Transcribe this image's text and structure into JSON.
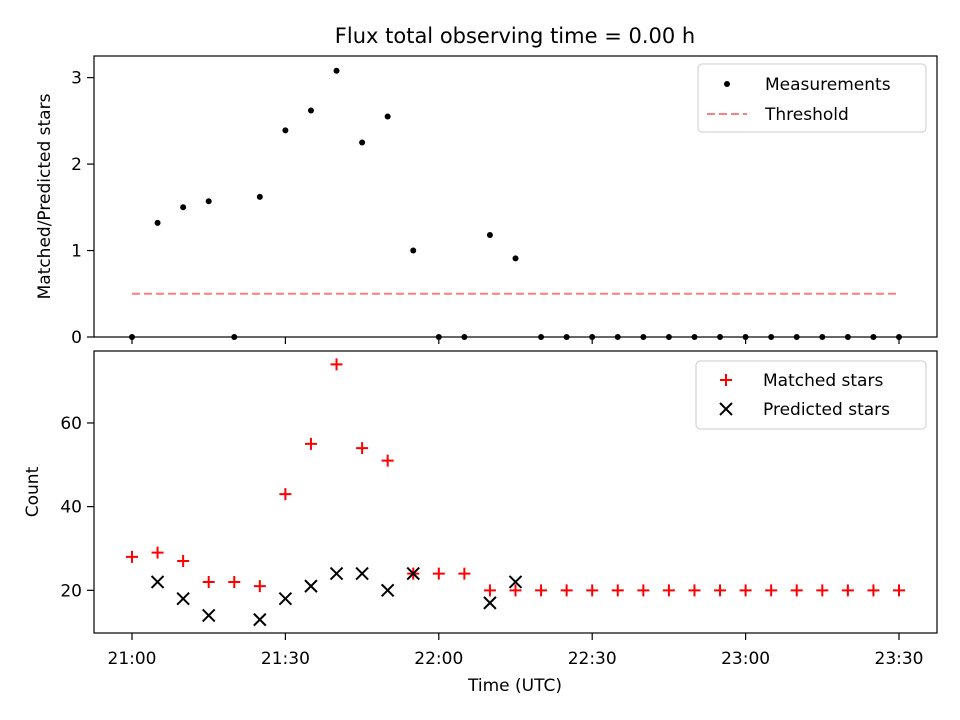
{
  "title": "Flux total observing time = 0.00 h",
  "colors": {
    "measurement": "#000000",
    "threshold": "#ff7f7f",
    "matched": "#ff0000",
    "predicted": "#000000"
  },
  "chart_data": [
    {
      "type": "scatter",
      "title": "Flux total observing time = 0.00 h",
      "xlabel": "",
      "ylabel": "Matched/Predicted stars",
      "ylim": [
        0,
        3.25
      ],
      "yticks": [
        0,
        1,
        2,
        3
      ],
      "x": [
        "21:00",
        "21:05",
        "21:10",
        "21:15",
        "21:20",
        "21:25",
        "21:30",
        "21:35",
        "21:40",
        "21:45",
        "21:50",
        "21:55",
        "22:00",
        "22:05",
        "22:10",
        "22:15",
        "22:20",
        "22:25",
        "22:30",
        "22:35",
        "22:40",
        "22:45",
        "22:50",
        "22:55",
        "23:00",
        "23:05",
        "23:10",
        "23:15",
        "23:20",
        "23:25",
        "23:30"
      ],
      "series": [
        {
          "name": "Measurements",
          "marker": "dot",
          "values": [
            0,
            1.32,
            1.5,
            1.57,
            0,
            1.62,
            2.39,
            2.62,
            3.08,
            2.25,
            2.55,
            1.0,
            0,
            0,
            1.18,
            0.91,
            0,
            0,
            0,
            0,
            0,
            0,
            0,
            0,
            0,
            0,
            0,
            0,
            0,
            0,
            0
          ]
        },
        {
          "name": "Threshold",
          "marker": "dashed-line",
          "values": [
            0.5,
            0.5
          ]
        }
      ],
      "legend": "top-right",
      "grid": false
    },
    {
      "type": "scatter",
      "xlabel": "Time (UTC)",
      "ylabel": "Count",
      "ylim": [
        9.8,
        77.2
      ],
      "yticks": [
        20,
        40,
        60
      ],
      "xticks": [
        "21:00",
        "21:30",
        "22:00",
        "22:30",
        "23:00",
        "23:30"
      ],
      "x": [
        "21:00",
        "21:05",
        "21:10",
        "21:15",
        "21:20",
        "21:25",
        "21:30",
        "21:35",
        "21:40",
        "21:45",
        "21:50",
        "21:55",
        "22:00",
        "22:05",
        "22:10",
        "22:15",
        "22:20",
        "22:25",
        "22:30",
        "22:35",
        "22:40",
        "22:45",
        "22:50",
        "22:55",
        "23:00",
        "23:05",
        "23:10",
        "23:15",
        "23:20",
        "23:25",
        "23:30"
      ],
      "series": [
        {
          "name": "Matched stars",
          "marker": "plus",
          "values": [
            28,
            29,
            27,
            22,
            22,
            21,
            43,
            55,
            74,
            54,
            51,
            24,
            24,
            24,
            20,
            20,
            20,
            20,
            20,
            20,
            20,
            20,
            20,
            20,
            20,
            20,
            20,
            20,
            20,
            20,
            20
          ]
        },
        {
          "name": "Predicted stars",
          "marker": "x",
          "values": [
            null,
            22,
            18,
            14,
            null,
            13,
            18,
            21,
            24,
            24,
            20,
            24,
            null,
            null,
            17,
            22,
            null,
            null,
            null,
            null,
            null,
            null,
            null,
            null,
            null,
            null,
            null,
            null,
            null,
            null,
            null
          ]
        }
      ],
      "legend": "top-right",
      "grid": false
    }
  ]
}
